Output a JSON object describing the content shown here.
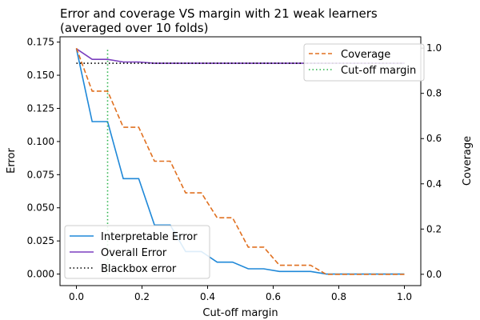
{
  "chart_data": {
    "type": "line",
    "title_lines": [
      "Error and coverage VS margin with 21 weak learners",
      "(averaged over 10 folds)"
    ],
    "xlabel": "Cut-off margin",
    "ylabel_left": "Error",
    "ylabel_right": "Coverage",
    "xlim": [
      -0.05,
      1.05
    ],
    "ylim_left": [
      -0.0087,
      0.179
    ],
    "ylim_right": [
      -0.05,
      1.05
    ],
    "x_ticks": [
      "0.0",
      "0.2",
      "0.4",
      "0.6",
      "0.8",
      "1.0"
    ],
    "x_tick_values": [
      0,
      0.2,
      0.4,
      0.6,
      0.8,
      1.0
    ],
    "y_ticks_left": [
      "0.000",
      "0.025",
      "0.050",
      "0.075",
      "0.100",
      "0.125",
      "0.150",
      "0.175"
    ],
    "y_tick_values_left": [
      0,
      0.025,
      0.05,
      0.075,
      0.1,
      0.125,
      0.15,
      0.175
    ],
    "y_ticks_right": [
      "0.0",
      "0.2",
      "0.4",
      "0.6",
      "0.8",
      "1.0"
    ],
    "y_tick_values_right": [
      0,
      0.2,
      0.4,
      0.6,
      0.8,
      1.0
    ],
    "series": [
      {
        "name": "Interpretable Error",
        "axis": "left",
        "color": "#1f88d8",
        "style": "solid",
        "x": [
          0,
          0.048,
          0.095,
          0.143,
          0.19,
          0.238,
          0.286,
          0.333,
          0.381,
          0.429,
          0.476,
          0.524,
          0.571,
          0.619,
          0.667,
          0.714,
          0.762,
          0.81,
          0.857,
          0.905,
          0.952,
          1.0
        ],
        "y": [
          0.17,
          0.115,
          0.115,
          0.072,
          0.072,
          0.037,
          0.037,
          0.017,
          0.017,
          0.009,
          0.009,
          0.004,
          0.004,
          0.002,
          0.002,
          0.002,
          0.0,
          0.0,
          0.0,
          0.0,
          0.0,
          0.0
        ]
      },
      {
        "name": "Overall Error",
        "axis": "left",
        "color": "#7b3fbf",
        "style": "solid",
        "x": [
          0,
          0.048,
          0.095,
          0.143,
          0.19,
          0.238,
          0.286,
          0.333,
          0.381,
          0.429,
          0.476,
          0.524,
          0.571,
          0.619,
          0.667,
          0.714,
          0.762,
          0.81,
          0.857,
          0.905,
          0.952,
          1.0
        ],
        "y": [
          0.17,
          0.162,
          0.162,
          0.16,
          0.16,
          0.159,
          0.159,
          0.159,
          0.159,
          0.159,
          0.159,
          0.159,
          0.159,
          0.159,
          0.159,
          0.159,
          0.159,
          0.159,
          0.159,
          0.159,
          0.159,
          0.159
        ]
      },
      {
        "name": "Blackbox error",
        "axis": "left",
        "color": "#000000",
        "style": "dotted",
        "x": [
          0,
          1.0
        ],
        "y": [
          0.159,
          0.159
        ]
      },
      {
        "name": "Coverage",
        "axis": "right",
        "color": "#e07020",
        "style": "dashed",
        "x": [
          0,
          0.048,
          0.095,
          0.143,
          0.19,
          0.238,
          0.286,
          0.333,
          0.381,
          0.429,
          0.476,
          0.524,
          0.571,
          0.619,
          0.667,
          0.714,
          0.762,
          0.81,
          0.857,
          0.905,
          0.952,
          1.0
        ],
        "y": [
          1.0,
          0.81,
          0.81,
          0.65,
          0.65,
          0.5,
          0.5,
          0.36,
          0.36,
          0.25,
          0.25,
          0.12,
          0.12,
          0.04,
          0.04,
          0.04,
          0.0,
          0.0,
          0.0,
          0.0,
          0.0,
          0.0
        ]
      },
      {
        "name": "Cut-off margin",
        "axis": "right",
        "color": "#2ab34a",
        "style": "dotted",
        "vertical_x": 0.095,
        "x": [
          0.095,
          0.095
        ],
        "y": [
          0.0,
          1.0
        ]
      }
    ],
    "legend_left": {
      "placement": "lower-left",
      "entries": [
        "Interpretable Error",
        "Overall Error",
        "Blackbox error"
      ]
    },
    "legend_right": {
      "placement": "upper-right",
      "entries": [
        "Coverage",
        "Cut-off margin"
      ]
    },
    "grid": false
  }
}
